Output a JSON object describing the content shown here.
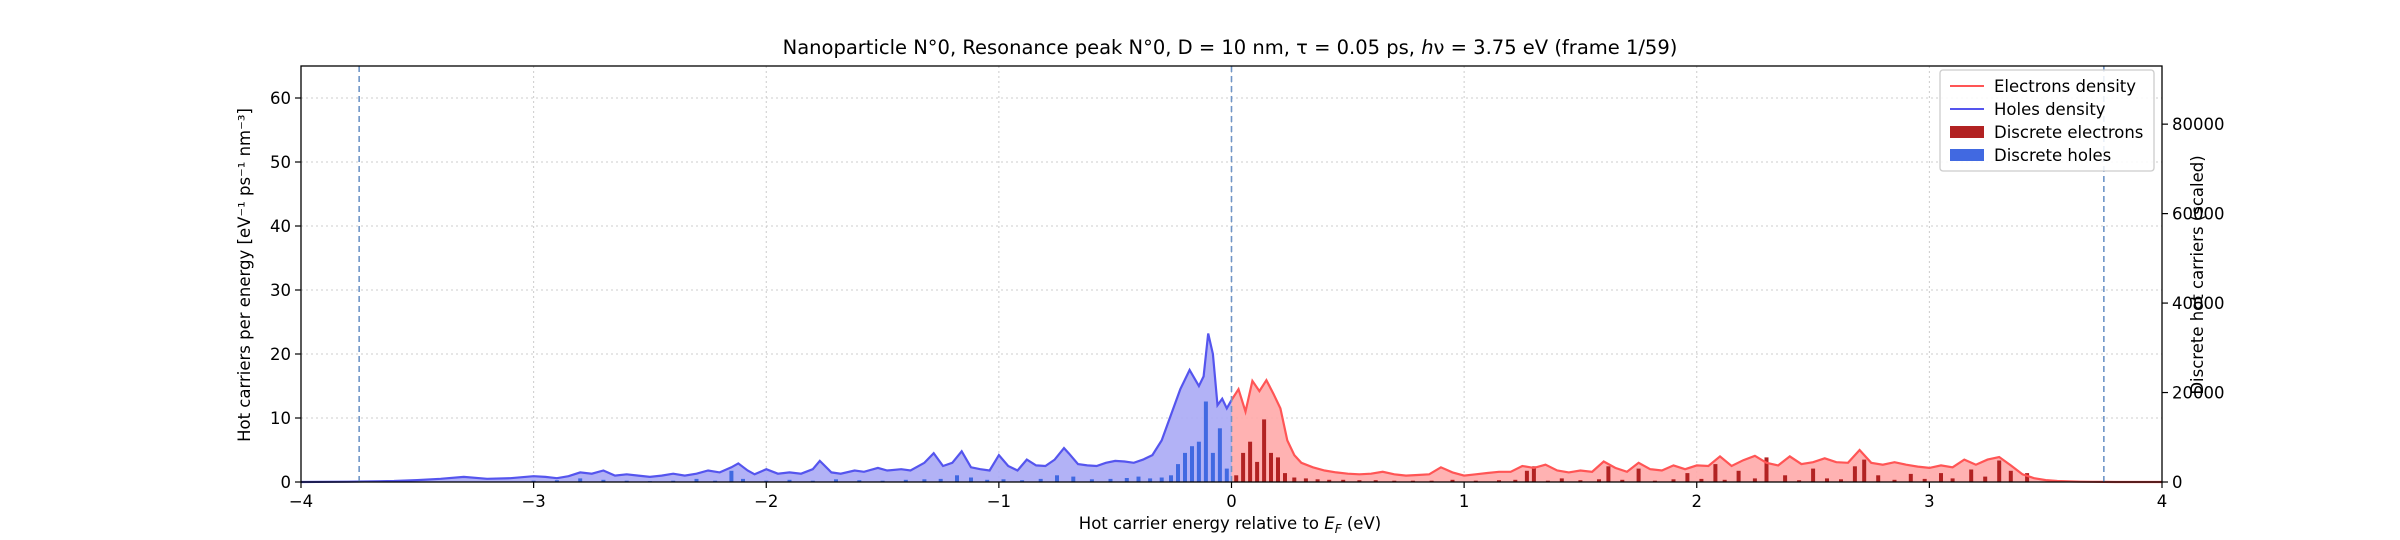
{
  "figure": {
    "title": "Nanoparticle N°0, Resonance peak N°0, D = 10 nm, τ = 0.05 ps, ℎν = 3.75 eV   (frame 1/59)"
  },
  "chart_data": {
    "type": "area",
    "title": "Nanoparticle N°0, Resonance peak N°0, D = 10 nm, τ = 0.05 ps, ℎν = 3.75 eV   (frame 1/59)",
    "xlabel": "Hot carrier energy relative to E_F (eV)",
    "xlabel_parts": {
      "prefix": "Hot carrier energy relative to ",
      "symbol": "E",
      "subscript": "F",
      "suffix": " (eV)"
    },
    "ylabel": "Hot carriers per energy [eV⁻¹ ps⁻¹ nm⁻³]",
    "ylabel_right": "Discrete hot carriers (scaled)",
    "xlim": [
      -4,
      4
    ],
    "ylim": [
      0,
      65
    ],
    "ylim_right": [
      0,
      93000
    ],
    "xticks": [
      -4,
      -3,
      -2,
      -1,
      0,
      1,
      2,
      3,
      4
    ],
    "xtick_labels": [
      "−4",
      "−3",
      "−2",
      "−1",
      "0",
      "1",
      "2",
      "3",
      "4"
    ],
    "yticks": [
      0,
      10,
      20,
      30,
      40,
      50,
      60
    ],
    "ytick_labels": [
      "0",
      "10",
      "20",
      "30",
      "40",
      "50",
      "60"
    ],
    "yticks_right": [
      0,
      20000,
      40000,
      60000,
      80000
    ],
    "ytick_labels_right": [
      "0",
      "20000",
      "40000",
      "60000",
      "80000"
    ],
    "grid": true,
    "legend_position": "top-right",
    "vlines": [
      -3.75,
      0,
      3.75
    ],
    "colors": {
      "electrons_line": "#ff5555",
      "electrons_fill": "#ffaaaa",
      "holes_line": "#5555ee",
      "holes_fill": "#aaaaf5",
      "discrete_electrons": "#b22222",
      "discrete_holes": "#4169e1",
      "vline": "#6f95c7",
      "grid": "#cccccc"
    },
    "series": [
      {
        "name": "Electrons density",
        "kind": "line",
        "x": [
          0.0,
          0.03,
          0.06,
          0.09,
          0.12,
          0.15,
          0.18,
          0.21,
          0.24,
          0.27,
          0.3,
          0.35,
          0.4,
          0.45,
          0.5,
          0.55,
          0.6,
          0.65,
          0.7,
          0.75,
          0.8,
          0.85,
          0.9,
          0.95,
          1.0,
          1.05,
          1.1,
          1.15,
          1.2,
          1.25,
          1.3,
          1.35,
          1.4,
          1.45,
          1.5,
          1.55,
          1.6,
          1.65,
          1.7,
          1.75,
          1.8,
          1.85,
          1.9,
          1.95,
          2.0,
          2.05,
          2.1,
          2.15,
          2.2,
          2.25,
          2.3,
          2.35,
          2.4,
          2.45,
          2.5,
          2.55,
          2.6,
          2.65,
          2.7,
          2.75,
          2.8,
          2.85,
          2.9,
          2.95,
          3.0,
          3.05,
          3.1,
          3.15,
          3.2,
          3.25,
          3.3,
          3.35,
          3.4,
          3.45,
          3.5,
          3.55,
          3.6,
          3.65,
          3.7,
          3.75,
          3.8,
          3.9,
          4.0
        ],
        "y": [
          12.8,
          14.5,
          11.0,
          15.8,
          14.2,
          15.9,
          13.8,
          11.5,
          6.5,
          4.2,
          3.0,
          2.3,
          1.8,
          1.5,
          1.3,
          1.2,
          1.3,
          1.6,
          1.2,
          1.0,
          1.1,
          1.2,
          2.3,
          1.5,
          1.0,
          1.2,
          1.4,
          1.6,
          1.6,
          2.5,
          2.2,
          2.7,
          1.8,
          1.5,
          1.8,
          1.6,
          3.2,
          2.2,
          1.6,
          3.0,
          2.0,
          1.8,
          2.6,
          2.0,
          2.6,
          2.5,
          4.0,
          2.5,
          3.4,
          4.1,
          3.0,
          2.6,
          4.0,
          2.8,
          3.1,
          3.7,
          3.1,
          3.0,
          5.0,
          3.0,
          2.7,
          3.1,
          2.7,
          2.4,
          2.2,
          2.6,
          2.3,
          3.5,
          2.7,
          3.5,
          3.9,
          2.6,
          1.2,
          0.6,
          0.3,
          0.15,
          0.1,
          0.05,
          0.03,
          0.02,
          0.0,
          0.0,
          0.0
        ]
      },
      {
        "name": "Holes density",
        "kind": "line",
        "x": [
          -4.0,
          -3.8,
          -3.6,
          -3.5,
          -3.4,
          -3.3,
          -3.2,
          -3.1,
          -3.0,
          -2.95,
          -2.9,
          -2.85,
          -2.8,
          -2.75,
          -2.7,
          -2.65,
          -2.6,
          -2.55,
          -2.5,
          -2.45,
          -2.4,
          -2.35,
          -2.3,
          -2.25,
          -2.2,
          -2.15,
          -2.12,
          -2.08,
          -2.05,
          -2.0,
          -1.95,
          -1.9,
          -1.85,
          -1.8,
          -1.77,
          -1.72,
          -1.68,
          -1.62,
          -1.58,
          -1.52,
          -1.48,
          -1.42,
          -1.38,
          -1.32,
          -1.28,
          -1.24,
          -1.2,
          -1.16,
          -1.12,
          -1.08,
          -1.04,
          -1.0,
          -0.96,
          -0.92,
          -0.88,
          -0.84,
          -0.8,
          -0.76,
          -0.72,
          -0.7,
          -0.66,
          -0.62,
          -0.58,
          -0.54,
          -0.5,
          -0.46,
          -0.42,
          -0.38,
          -0.34,
          -0.3,
          -0.26,
          -0.22,
          -0.18,
          -0.14,
          -0.12,
          -0.1,
          -0.08,
          -0.06,
          -0.04,
          -0.02,
          0.0
        ],
        "y": [
          0.0,
          0.05,
          0.15,
          0.3,
          0.5,
          0.8,
          0.5,
          0.6,
          0.9,
          0.8,
          0.6,
          0.9,
          1.5,
          1.3,
          1.8,
          1.0,
          1.2,
          1.0,
          0.8,
          1.0,
          1.3,
          1.0,
          1.3,
          1.8,
          1.5,
          2.3,
          2.9,
          1.8,
          1.2,
          2.0,
          1.3,
          1.5,
          1.3,
          2.0,
          3.3,
          1.5,
          1.3,
          1.8,
          1.6,
          2.2,
          1.8,
          2.0,
          1.8,
          3.0,
          4.5,
          2.5,
          3.0,
          4.8,
          2.3,
          2.0,
          1.8,
          4.2,
          2.5,
          1.8,
          3.5,
          2.6,
          2.5,
          3.5,
          5.3,
          4.5,
          2.8,
          2.6,
          2.5,
          3.0,
          3.3,
          3.2,
          3.0,
          3.5,
          4.2,
          6.5,
          10.5,
          14.5,
          17.5,
          15.0,
          16.5,
          23.2,
          20.0,
          12.0,
          13.0,
          11.5,
          12.8
        ]
      },
      {
        "name": "Discrete electrons",
        "kind": "bar",
        "x": [
          0.02,
          0.05,
          0.08,
          0.11,
          0.14,
          0.17,
          0.2,
          0.23,
          0.27,
          0.32,
          0.37,
          0.42,
          0.48,
          0.55,
          0.62,
          0.7,
          0.78,
          0.86,
          0.95,
          1.05,
          1.15,
          1.22,
          1.27,
          1.3,
          1.36,
          1.42,
          1.5,
          1.58,
          1.62,
          1.68,
          1.75,
          1.82,
          1.9,
          1.96,
          2.02,
          2.08,
          2.12,
          2.18,
          2.25,
          2.3,
          2.38,
          2.44,
          2.5,
          2.56,
          2.62,
          2.68,
          2.72,
          2.78,
          2.85,
          2.92,
          2.98,
          3.05,
          3.1,
          3.18,
          3.24,
          3.3,
          3.35,
          3.42
        ],
        "y": [
          1500,
          6500,
          9000,
          4500,
          14000,
          6500,
          5500,
          2000,
          1000,
          800,
          600,
          500,
          500,
          400,
          400,
          300,
          300,
          300,
          500,
          300,
          400,
          500,
          2500,
          3500,
          300,
          800,
          400,
          600,
          3500,
          500,
          3000,
          300,
          600,
          2000,
          700,
          4000,
          500,
          2500,
          800,
          5500,
          1500,
          400,
          3000,
          800,
          600,
          3500,
          5000,
          1500,
          500,
          1800,
          700,
          2000,
          800,
          2800,
          1200,
          4800,
          2500,
          2000
        ]
      },
      {
        "name": "Discrete holes",
        "kind": "bar",
        "x": [
          -0.02,
          -0.05,
          -0.08,
          -0.11,
          -0.14,
          -0.17,
          -0.2,
          -0.23,
          -0.26,
          -0.3,
          -0.35,
          -0.4,
          -0.45,
          -0.52,
          -0.6,
          -0.68,
          -0.75,
          -0.82,
          -0.9,
          -0.98,
          -1.05,
          -1.12,
          -1.18,
          -1.25,
          -1.32,
          -1.4,
          -1.5,
          -1.6,
          -1.7,
          -1.8,
          -1.9,
          -2.0,
          -2.1,
          -2.15,
          -2.22,
          -2.3,
          -2.4,
          -2.5,
          -2.6,
          -2.7,
          -2.8,
          -2.9,
          -3.0
        ],
        "y": [
          3000,
          12000,
          6500,
          18000,
          9000,
          8000,
          6500,
          4000,
          1500,
          1000,
          800,
          1200,
          900,
          700,
          600,
          1200,
          1500,
          700,
          400,
          600,
          500,
          1000,
          1500,
          700,
          600,
          500,
          300,
          400,
          600,
          300,
          500,
          300,
          700,
          2500,
          300,
          700,
          300,
          200,
          300,
          500,
          800,
          400,
          300
        ]
      }
    ]
  }
}
